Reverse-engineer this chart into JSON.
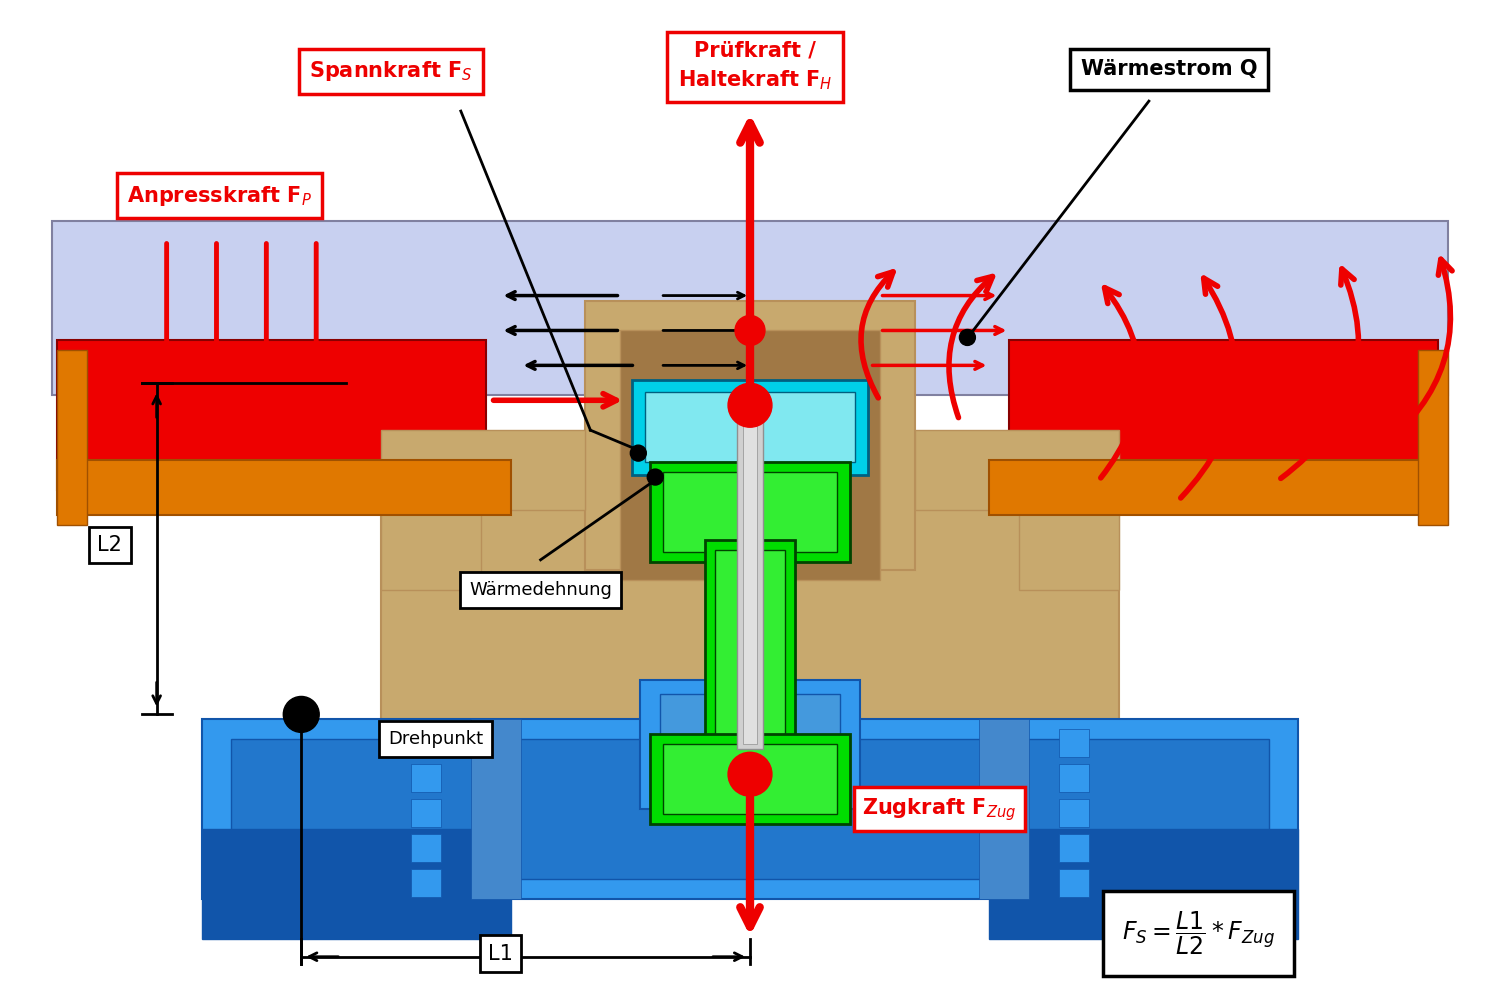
{
  "bg_color": "#ffffff",
  "fig_width": 15.0,
  "fig_height": 10.0,
  "red": "#ee0000",
  "black": "#000000",
  "orange": "#e07800",
  "tan": "#c8a96e",
  "tan_dark": "#b8905a",
  "tan_inner": "#a07845",
  "blue_light": "#3399ee",
  "blue_mid": "#2277cc",
  "blue_dark": "#1155aa",
  "cyan": "#00d0e8",
  "cyan_light": "#80e8f0",
  "green_bright": "#00dd00",
  "green_mid": "#33ee33",
  "lavender": "#c8d0f0",
  "white": "#ffffff",
  "gray_light": "#d0d0d0",
  "gray_mid": "#909090",
  "labels": {
    "spannkraft": "Spannkraft F$_S$",
    "pruefkraft": "Prüfkraft /\nHaltekraft F$_H$",
    "waermestrom": "Wärmestrom Q",
    "anpresskraft": "Anpresskraft F$_P$",
    "waermedehnung": "Wärmedehnung",
    "drehpunkt": "Drehpunkt",
    "zugkraft": "Zugkraft F$_{Zug}$",
    "L1": "L1",
    "L2": "L2"
  }
}
